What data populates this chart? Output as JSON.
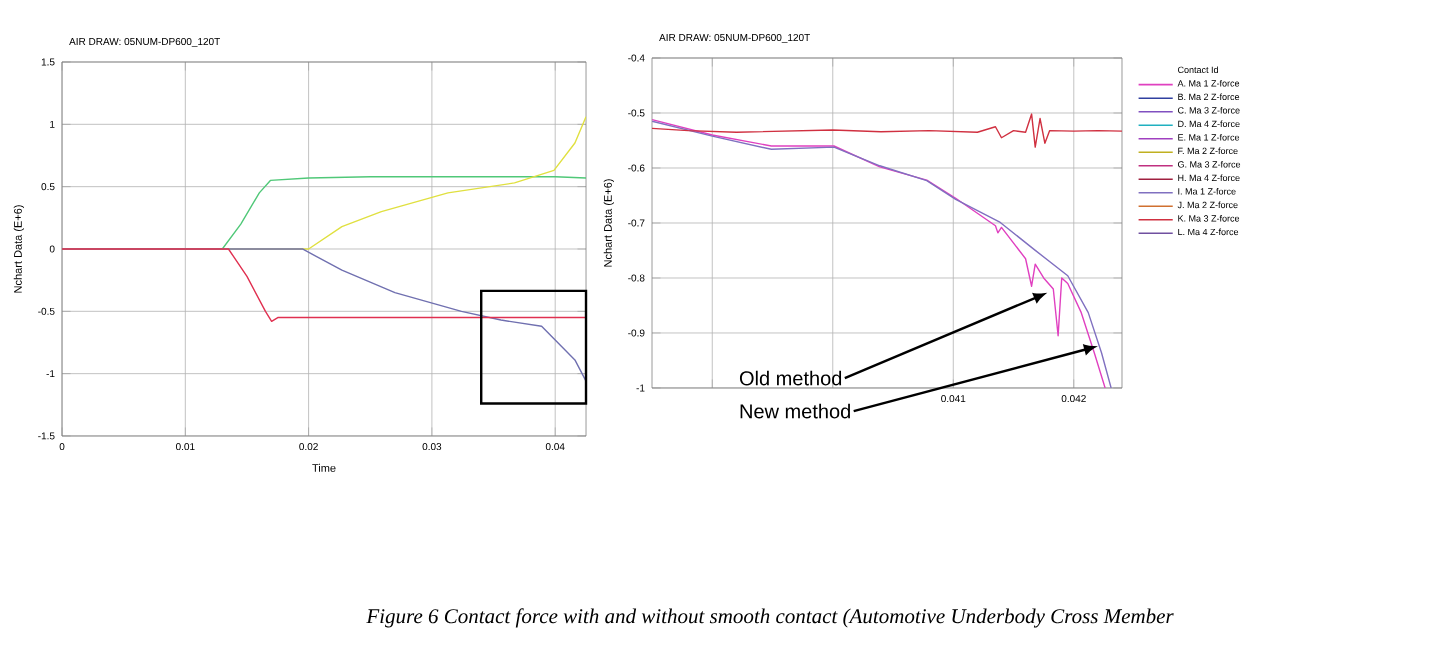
{
  "chart_data": [
    {
      "type": "line",
      "title": "AIR DRAW: 05NUM-DP600_120T",
      "xlabel": "Time",
      "ylabel": "Nchart Data (E+6)",
      "xlim": [
        0,
        0.0425
      ],
      "ylim": [
        -1.5,
        1.5
      ],
      "xticks": [
        0,
        0.01,
        0.02,
        0.03,
        0.04
      ],
      "yticks": [
        -1.5,
        -1,
        -0.5,
        0,
        0.5,
        1,
        1.5
      ],
      "grid": true,
      "series": [
        {
          "color": "#50c878",
          "x": [
            0,
            0.005,
            0.013,
            0.0145,
            0.016,
            0.0169,
            0.02,
            0.025,
            0.03,
            0.035,
            0.04,
            0.0425
          ],
          "values": [
            0,
            0,
            0,
            0.2,
            0.45,
            0.55,
            0.57,
            0.58,
            0.58,
            0.58,
            0.58,
            0.57
          ]
        },
        {
          "color": "#e0e040",
          "x": [
            0,
            0.01,
            0.02,
            0.0227,
            0.0259,
            0.0313,
            0.0367,
            0.0399,
            0.0416,
            0.0425
          ],
          "values": [
            0,
            0,
            0,
            0.18,
            0.3,
            0.45,
            0.53,
            0.63,
            0.85,
            1.06
          ]
        },
        {
          "color": "#7070b0",
          "x": [
            0,
            0.01,
            0.0195,
            0.0227,
            0.027,
            0.0324,
            0.0356,
            0.0389,
            0.0405,
            0.0416,
            0.0425
          ],
          "values": [
            0,
            0,
            0,
            -0.17,
            -0.35,
            -0.5,
            -0.57,
            -0.62,
            -0.78,
            -0.89,
            -1.06
          ]
        },
        {
          "color": "#e03050",
          "x": [
            0,
            0.01,
            0.0135,
            0.015,
            0.0165,
            0.017,
            0.0175,
            0.02,
            0.03,
            0.04,
            0.0425
          ],
          "values": [
            0,
            0,
            0,
            -0.22,
            -0.5,
            -0.58,
            -0.55,
            -0.55,
            -0.55,
            -0.55,
            -0.55
          ]
        }
      ],
      "annotations": [
        "Figure 6 Contact force with and without smooth contact (Automotive Underbody Cross Member"
      ]
    },
    {
      "type": "line",
      "title": "AIR DRAW: 05NUM-DP600_120T",
      "ylabel": "Nchart Data (E+6)",
      "xlim": [
        0.0385,
        0.0424
      ],
      "ylim": [
        -1,
        -0.4
      ],
      "xticks": [
        {
          "value": 0.039,
          "label": null
        },
        {
          "value": 0.04,
          "label": null
        },
        0.041,
        0.042
      ],
      "yticks": [
        -1,
        -0.9,
        -0.8,
        -0.7,
        -0.6,
        -0.5,
        -0.4
      ],
      "grid": true,
      "legend": "right",
      "legend_title": "Contact Id",
      "series": [
        {
          "name": "A. Ma 1 Z-force",
          "color": "#e040c0",
          "x": [
            0.0385,
            0.039,
            0.03949,
            0.04001,
            0.04039,
            0.04078,
            0.04102,
            0.04135,
            0.04137,
            0.0414,
            0.0416,
            0.04165,
            0.04168,
            0.04175,
            0.04183,
            0.04187,
            0.0419,
            0.04195,
            0.04206,
            0.04217,
            0.04226
          ],
          "values": [
            -0.512,
            -0.54,
            -0.56,
            -0.56,
            -0.598,
            -0.622,
            -0.655,
            -0.705,
            -0.718,
            -0.708,
            -0.765,
            -0.815,
            -0.775,
            -0.8,
            -0.82,
            -0.905,
            -0.8,
            -0.81,
            -0.862,
            -0.936,
            -1.0
          ]
        },
        {
          "name": "B. Ma 2 Z-force",
          "color": "#3040a0"
        },
        {
          "name": "C. Ma 3 Z-force",
          "color": "#8050c0"
        },
        {
          "name": "D. Ma 4 Z-force",
          "color": "#20b0c0"
        },
        {
          "name": "E. Ma 1 Z-force",
          "color": "#a040c0"
        },
        {
          "name": "F. Ma 2 Z-force",
          "color": "#c0b020"
        },
        {
          "name": "G. Ma 3 Z-force",
          "color": "#c03080"
        },
        {
          "name": "H. Ma 4 Z-force",
          "color": "#a02040"
        },
        {
          "name": "I. Ma 1 Z-force",
          "color": "#8070c0",
          "x": [
            0.0385,
            0.039,
            0.03949,
            0.04001,
            0.04039,
            0.04078,
            0.04102,
            0.04139,
            0.04167,
            0.04195,
            0.04212,
            0.04223,
            0.04231
          ],
          "values": [
            -0.515,
            -0.542,
            -0.566,
            -0.562,
            -0.596,
            -0.623,
            -0.657,
            -0.699,
            -0.748,
            -0.796,
            -0.863,
            -0.936,
            -1.0
          ]
        },
        {
          "name": "J. Ma 2 Z-force",
          "color": "#d07030"
        },
        {
          "name": "K. Ma 3 Z-force",
          "color": "#d03040",
          "x": [
            0.0385,
            0.0388,
            0.0392,
            0.0396,
            0.04,
            0.0404,
            0.0408,
            0.0412,
            0.04135,
            0.0414,
            0.0415,
            0.0416,
            0.04165,
            0.04168,
            0.04172,
            0.04176,
            0.0418,
            0.042,
            0.0422,
            0.0424
          ],
          "values": [
            -0.528,
            -0.532,
            -0.535,
            -0.533,
            -0.531,
            -0.534,
            -0.532,
            -0.535,
            -0.525,
            -0.545,
            -0.532,
            -0.535,
            -0.502,
            -0.562,
            -0.51,
            -0.555,
            -0.532,
            -0.533,
            -0.532,
            -0.533
          ]
        },
        {
          "name": "L. Ma 4 Z-force",
          "color": "#7050a0"
        }
      ],
      "annotations": [
        {
          "text": "Old method",
          "x": 0.04178,
          "y": -0.827
        },
        {
          "text": "New method",
          "x": 0.0422,
          "y": -0.924
        }
      ]
    }
  ]
}
